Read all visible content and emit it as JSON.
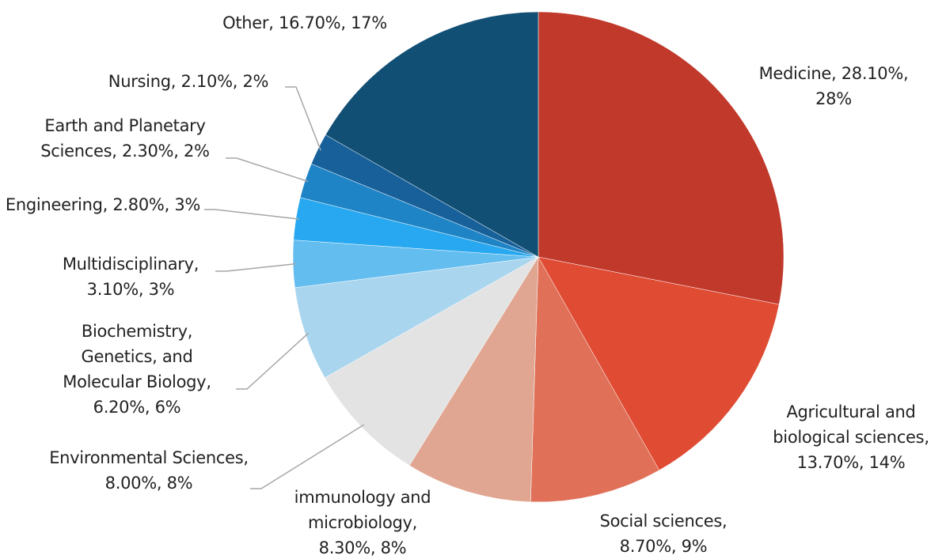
{
  "chart_data": {
    "type": "pie",
    "categories": [
      "Medicine",
      "Agricultural and biological sciences",
      "Social sciences",
      "immunology and microbiology",
      "Environmental Sciences",
      "Biochemistry, Genetics, and Molecular Biology",
      "Multidisciplinary",
      "Engineering",
      "Earth and Planetary Sciences",
      "Nursing",
      "Other"
    ],
    "values": [
      28.1,
      13.7,
      8.7,
      8.3,
      8.0,
      6.2,
      3.1,
      2.8,
      2.3,
      2.1,
      16.7
    ],
    "value_labels": [
      "28.10%",
      "13.70%",
      "8.70%",
      "8.30%",
      "8.00%",
      "6.20%",
      "3.10%",
      "2.80%",
      "2.30%",
      "2.10%",
      "16.70%"
    ],
    "percent_labels": [
      "28%",
      "14%",
      "9%",
      "8%",
      "8%",
      "6%",
      "3%",
      "3%",
      "2%",
      "2%",
      "17%"
    ],
    "label_separator": ", ",
    "colors": [
      "#C0392B",
      "#E04B33",
      "#E07058",
      "#E0A691",
      "#E3E3E3",
      "#A9D5EE",
      "#63BDEF",
      "#27A8F0",
      "#1F84C6",
      "#17609A",
      "#124F75"
    ]
  }
}
